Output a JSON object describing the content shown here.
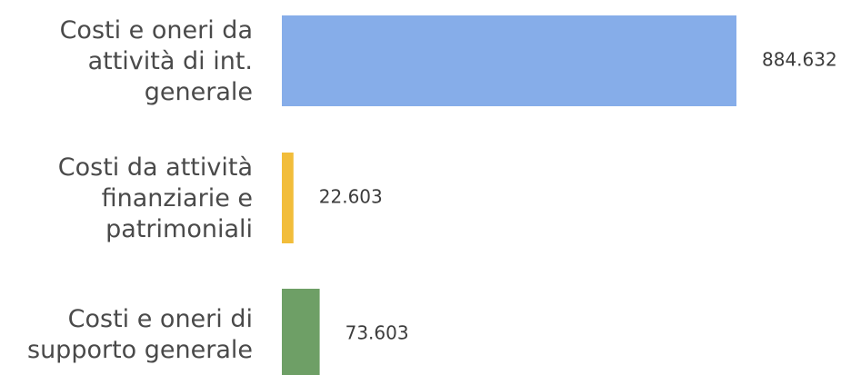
{
  "chart_data": {
    "type": "bar",
    "orientation": "horizontal",
    "categories": [
      [
        "Costi e oneri da",
        "attività di int.",
        "generale"
      ],
      [
        "Costi da attività",
        "finanziarie e",
        "patrimoniali"
      ],
      [
        "Costi e oneri di",
        "supporto generale"
      ]
    ],
    "values": [
      884632,
      22603,
      73603
    ],
    "value_labels": [
      "884.632",
      "22.603",
      "73.603"
    ],
    "colors": [
      "#86ade9",
      "#f2bd3a",
      "#6e9f66"
    ],
    "title": "",
    "xlabel": "",
    "ylabel": "",
    "grid": false,
    "legend": "none"
  }
}
